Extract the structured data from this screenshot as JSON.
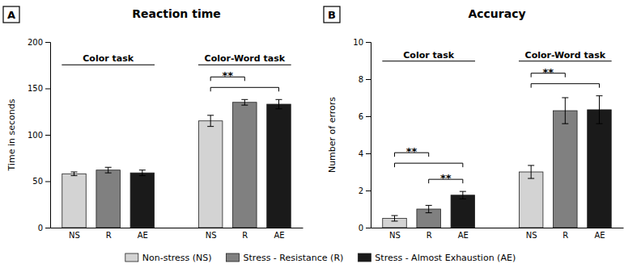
{
  "chart_data": [
    {
      "type": "bar",
      "panel": "A",
      "title": "Reaction time",
      "ylabel": "Time in seconds",
      "ylim": [
        0,
        200
      ],
      "yticks": [
        0,
        50,
        100,
        150,
        200
      ],
      "categories": [
        "Color task",
        "Color-Word task"
      ],
      "series": [
        {
          "name": "Non-stress (NS)",
          "label": "NS",
          "color": "#d3d3d3",
          "values": [
            58,
            115
          ],
          "errors": [
            2,
            6
          ]
        },
        {
          "name": "Stress - Resistance (R)",
          "label": "R",
          "color": "#808080",
          "values": [
            62,
            135
          ],
          "errors": [
            3,
            3
          ]
        },
        {
          "name": "Stress - Almost Exhaustion (AE)",
          "label": "AE",
          "color": "#1a1a1a",
          "values": [
            59,
            133
          ],
          "errors": [
            3,
            5
          ]
        }
      ],
      "annotations": [
        {
          "category": 1,
          "between": [
            0,
            2
          ]
        },
        {
          "category": 1,
          "between": [
            0,
            1
          ],
          "text": "**"
        }
      ]
    },
    {
      "type": "bar",
      "panel": "B",
      "title": "Accuracy",
      "ylabel": "Number of errors",
      "ylim": [
        0,
        10
      ],
      "yticks": [
        0,
        2,
        4,
        6,
        8,
        10
      ],
      "categories": [
        "Color task",
        "Color-Word task"
      ],
      "series": [
        {
          "label": "NS",
          "color": "#d3d3d3",
          "values": [
            0.5,
            3.0
          ],
          "errors": [
            0.15,
            0.35
          ]
        },
        {
          "label": "R",
          "color": "#808080",
          "values": [
            1.0,
            6.3
          ],
          "errors": [
            0.2,
            0.7
          ]
        },
        {
          "label": "AE",
          "color": "#1a1a1a",
          "values": [
            1.75,
            6.35
          ],
          "errors": [
            0.2,
            0.75
          ]
        }
      ],
      "annotations": [
        {
          "category": 0,
          "between": [
            1,
            2
          ],
          "text": "**"
        },
        {
          "category": 0,
          "between": [
            0,
            2
          ]
        },
        {
          "category": 0,
          "between": [
            0,
            1
          ],
          "text": "**"
        },
        {
          "category": 1,
          "between": [
            0,
            2
          ]
        },
        {
          "category": 1,
          "between": [
            0,
            1
          ],
          "text": "**"
        }
      ]
    }
  ]
}
